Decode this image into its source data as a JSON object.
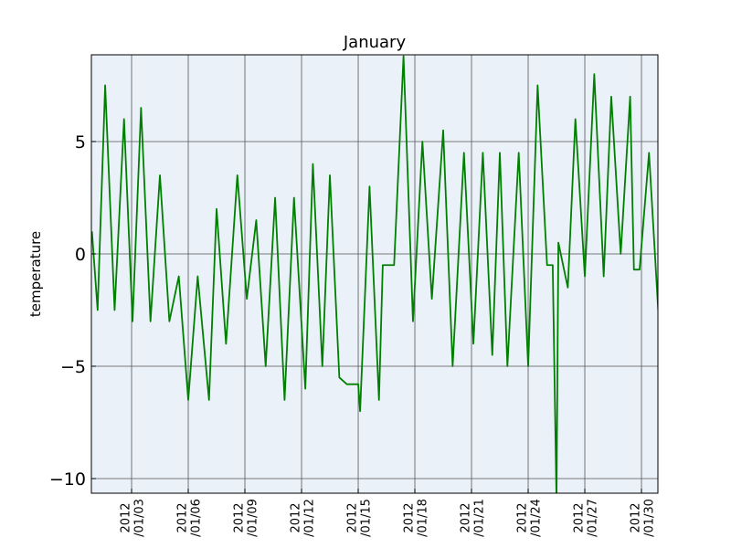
{
  "chart_data": {
    "type": "line",
    "title": "January",
    "y_label": "temperature",
    "x": [
      0.9,
      1.2,
      1.6,
      2.1,
      2.6,
      3.05,
      3.5,
      4.0,
      4.5,
      5.0,
      5.5,
      6.0,
      6.5,
      7.1,
      7.5,
      8.0,
      8.6,
      9.1,
      9.6,
      10.1,
      10.6,
      11.1,
      11.6,
      12.2,
      12.6,
      13.1,
      13.5,
      14.0,
      14.4,
      15.0,
      15.1,
      15.6,
      16.1,
      16.3,
      16.9,
      17.4,
      17.9,
      18.4,
      18.9,
      19.5,
      20.0,
      20.6,
      21.1,
      21.6,
      22.1,
      22.5,
      22.9,
      23.5,
      24.0,
      24.5,
      25.0,
      25.3,
      25.5,
      25.6,
      26.1,
      26.5,
      27.0,
      27.5,
      28.0,
      28.4,
      28.9,
      29.4,
      29.6,
      29.9,
      30.4,
      30.9
    ],
    "series": [
      {
        "name": "temperature",
        "color": "#008000",
        "values": [
          1,
          -2.5,
          7.5,
          -2.5,
          6,
          -3,
          6.5,
          -3,
          3.5,
          -3,
          -1,
          -6.5,
          -1,
          -6.5,
          2,
          -4,
          3.5,
          -2,
          1.5,
          -5,
          2.5,
          -6.5,
          2.5,
          -6,
          4,
          -5,
          3.5,
          -5.5,
          -5.8,
          -5.8,
          -7,
          3,
          -6.5,
          -0.5,
          -0.5,
          8.8,
          -3,
          5,
          -2,
          5.5,
          -5,
          4.5,
          -4,
          4.5,
          -4.5,
          4.5,
          -5,
          4.5,
          -5,
          7.5,
          -0.5,
          -0.5,
          -11,
          0.5,
          -1.5,
          6,
          -1,
          8,
          -1,
          7,
          0,
          7,
          -0.7,
          -0.7,
          4.5,
          -2.7
        ]
      }
    ],
    "xlim": [
      0.87,
      30.87
    ],
    "xticks": [
      {
        "value": 3,
        "label": "2012\n/01/03"
      },
      {
        "value": 6,
        "label": "2012\n/01/06"
      },
      {
        "value": 9,
        "label": "2012\n/01/09"
      },
      {
        "value": 12,
        "label": "2012\n/01/12"
      },
      {
        "value": 15,
        "label": "2012\n/01/15"
      },
      {
        "value": 18,
        "label": "2012\n/01/18"
      },
      {
        "value": 21,
        "label": "2012\n/01/21"
      },
      {
        "value": 24,
        "label": "2012\n/01/24"
      },
      {
        "value": 27,
        "label": "2012\n/01/27"
      },
      {
        "value": 30,
        "label": "2012\n/01/30"
      }
    ],
    "ylim": [
      -10.65,
      8.86
    ],
    "yticks": [
      {
        "value": -10,
        "label": "−10"
      },
      {
        "value": -5,
        "label": "−5"
      },
      0,
      5
    ],
    "grid": true,
    "background": "#eaf1f8"
  }
}
